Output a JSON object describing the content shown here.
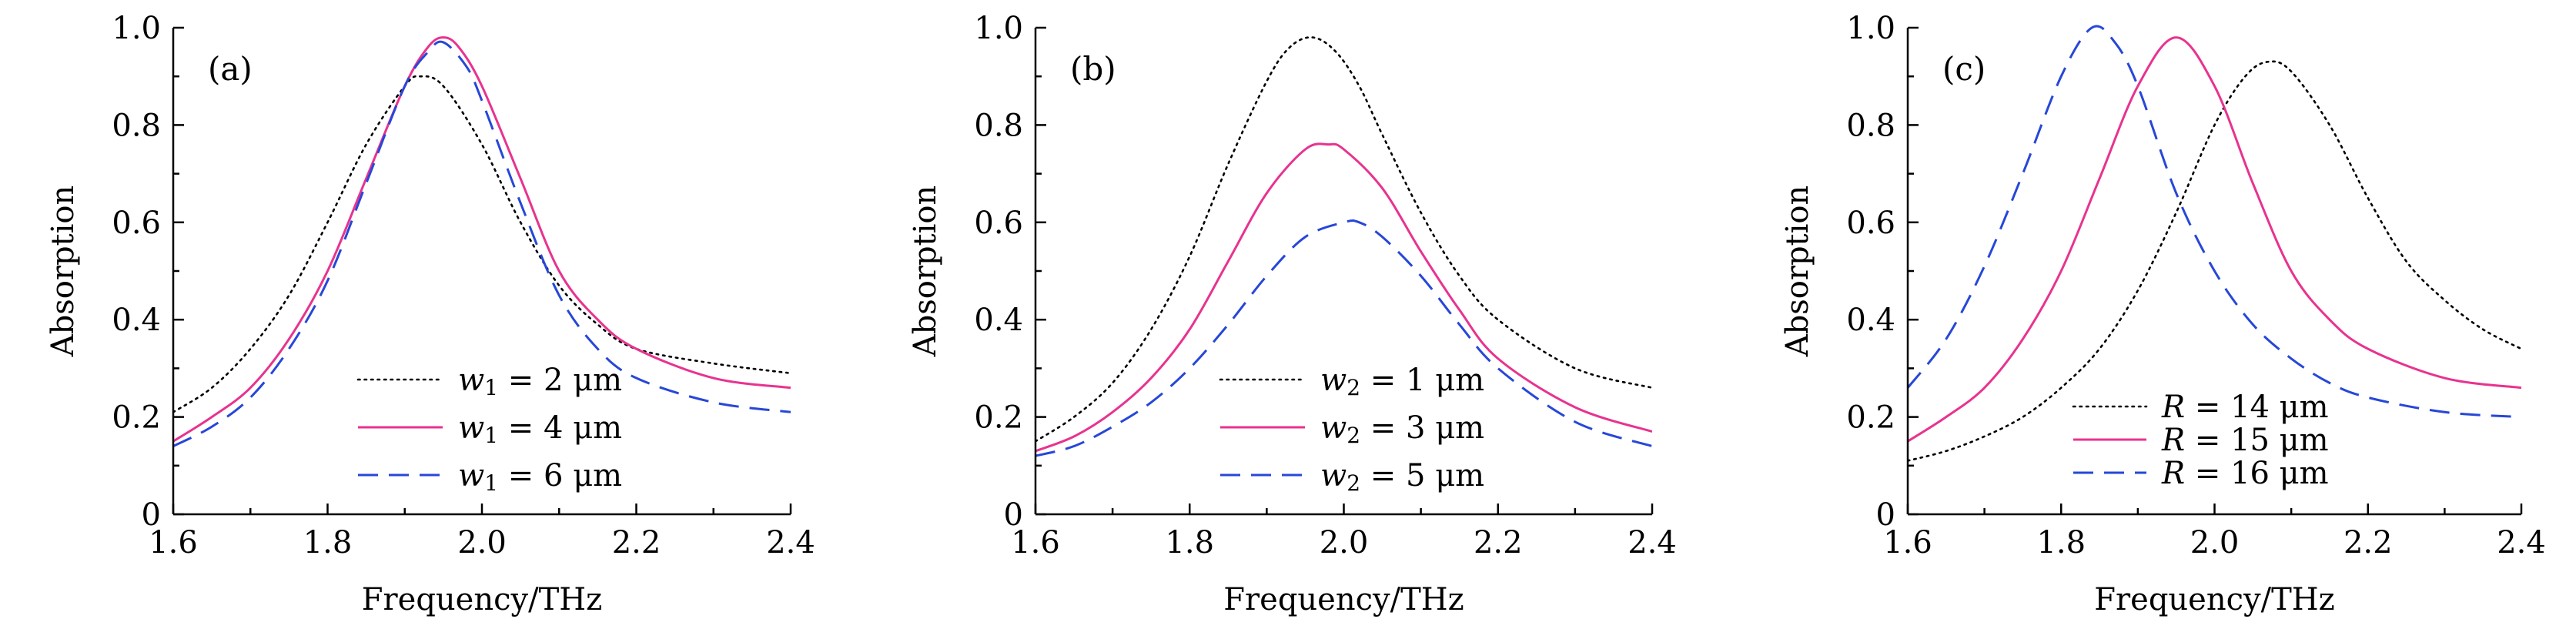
{
  "chart_data": [
    {
      "type": "line",
      "panel_label": "(a)",
      "xlabel": "Frequency/THz",
      "ylabel": "Absorption",
      "xlim": [
        1.6,
        2.4
      ],
      "ylim": [
        0,
        1.0
      ],
      "xticks": [
        "1.6",
        "1.8",
        "2.0",
        "2.2",
        "2.4"
      ],
      "yticks": [
        "0",
        "0.2",
        "0.4",
        "0.6",
        "0.8",
        "1.0"
      ],
      "grid": false,
      "legend_position": "lower-right",
      "series": [
        {
          "name": "w1 = 2 μm",
          "legend_var": "w",
          "legend_sub": "1",
          "legend_rest": " = 2 μm",
          "style": "dotted",
          "color": "#000000",
          "x": [
            1.6,
            1.65,
            1.7,
            1.75,
            1.8,
            1.85,
            1.9,
            1.92,
            1.95,
            2.0,
            2.05,
            2.1,
            2.15,
            2.2,
            2.3,
            2.4
          ],
          "y": [
            0.21,
            0.26,
            0.34,
            0.45,
            0.6,
            0.76,
            0.88,
            0.9,
            0.88,
            0.76,
            0.6,
            0.47,
            0.39,
            0.34,
            0.31,
            0.29
          ]
        },
        {
          "name": "w1 = 4 μm",
          "legend_var": "w",
          "legend_sub": "1",
          "legend_rest": " = 4 μm",
          "style": "solid",
          "color": "#e8338f",
          "x": [
            1.6,
            1.65,
            1.7,
            1.75,
            1.8,
            1.85,
            1.9,
            1.93,
            1.95,
            1.97,
            2.0,
            2.05,
            2.1,
            2.15,
            2.2,
            2.3,
            2.4
          ],
          "y": [
            0.15,
            0.2,
            0.26,
            0.36,
            0.5,
            0.69,
            0.88,
            0.96,
            0.98,
            0.96,
            0.88,
            0.69,
            0.5,
            0.4,
            0.34,
            0.28,
            0.26
          ]
        },
        {
          "name": "w1 = 6 μm",
          "legend_var": "w",
          "legend_sub": "1",
          "legend_rest": " = 6 μm",
          "style": "dashed",
          "color": "#2747d8",
          "x": [
            1.6,
            1.65,
            1.7,
            1.75,
            1.8,
            1.85,
            1.9,
            1.93,
            1.95,
            1.98,
            2.0,
            2.05,
            2.1,
            2.15,
            2.2,
            2.3,
            2.4
          ],
          "y": [
            0.14,
            0.18,
            0.24,
            0.34,
            0.48,
            0.68,
            0.88,
            0.95,
            0.97,
            0.92,
            0.85,
            0.64,
            0.45,
            0.34,
            0.28,
            0.23,
            0.21
          ]
        }
      ]
    },
    {
      "type": "line",
      "panel_label": "(b)",
      "xlabel": "Frequency/THz",
      "ylabel": "Absorption",
      "xlim": [
        1.6,
        2.4
      ],
      "ylim": [
        0,
        1.0
      ],
      "xticks": [
        "1.6",
        "1.8",
        "2.0",
        "2.2",
        "2.4"
      ],
      "yticks": [
        "0",
        "0.2",
        "0.4",
        "0.6",
        "0.8",
        "1.0"
      ],
      "grid": false,
      "legend_position": "lower-right",
      "series": [
        {
          "name": "w2 = 1 μm",
          "legend_var": "w",
          "legend_sub": "2",
          "legend_rest": " = 1 μm",
          "style": "dotted",
          "color": "#000000",
          "x": [
            1.6,
            1.65,
            1.7,
            1.75,
            1.8,
            1.85,
            1.9,
            1.93,
            1.96,
            1.99,
            2.02,
            2.05,
            2.1,
            2.15,
            2.2,
            2.3,
            2.4
          ],
          "y": [
            0.15,
            0.2,
            0.27,
            0.38,
            0.53,
            0.72,
            0.89,
            0.96,
            0.98,
            0.95,
            0.88,
            0.78,
            0.62,
            0.49,
            0.4,
            0.3,
            0.26
          ]
        },
        {
          "name": "w2 = 3 μm",
          "legend_var": "w",
          "legend_sub": "2",
          "legend_rest": " = 3 μm",
          "style": "solid",
          "color": "#e8338f",
          "x": [
            1.6,
            1.65,
            1.7,
            1.75,
            1.8,
            1.85,
            1.9,
            1.95,
            1.98,
            2.0,
            2.05,
            2.1,
            2.15,
            2.2,
            2.3,
            2.4
          ],
          "y": [
            0.13,
            0.16,
            0.21,
            0.28,
            0.38,
            0.52,
            0.66,
            0.75,
            0.76,
            0.75,
            0.67,
            0.54,
            0.42,
            0.32,
            0.22,
            0.17
          ]
        },
        {
          "name": "w2 = 5 μm",
          "legend_var": "w",
          "legend_sub": "2",
          "legend_rest": " = 5 μm",
          "style": "dashed",
          "color": "#2747d8",
          "x": [
            1.6,
            1.65,
            1.7,
            1.75,
            1.8,
            1.85,
            1.9,
            1.95,
            2.0,
            2.02,
            2.05,
            2.1,
            2.15,
            2.2,
            2.3,
            2.4
          ],
          "y": [
            0.12,
            0.14,
            0.18,
            0.23,
            0.3,
            0.39,
            0.49,
            0.57,
            0.6,
            0.6,
            0.57,
            0.49,
            0.39,
            0.3,
            0.19,
            0.14
          ]
        }
      ]
    },
    {
      "type": "line",
      "panel_label": "(c)",
      "xlabel": "Frequency/THz",
      "ylabel": "Absorption",
      "xlim": [
        1.6,
        2.4
      ],
      "ylim": [
        0,
        1.0
      ],
      "xticks": [
        "1.6",
        "1.8",
        "2.0",
        "2.2",
        "2.4"
      ],
      "yticks": [
        "0",
        "0.2",
        "0.4",
        "0.6",
        "0.8",
        "1.0"
      ],
      "grid": false,
      "legend_position": "lower-right",
      "series": [
        {
          "name": "R = 14 μm",
          "legend_var": "R",
          "legend_sub": "",
          "legend_rest": " = 14 μm",
          "style": "dotted",
          "color": "#000000",
          "x": [
            1.6,
            1.65,
            1.7,
            1.75,
            1.8,
            1.85,
            1.9,
            1.95,
            2.0,
            2.04,
            2.07,
            2.1,
            2.15,
            2.2,
            2.25,
            2.3,
            2.35,
            2.4
          ],
          "y": [
            0.11,
            0.13,
            0.16,
            0.2,
            0.26,
            0.34,
            0.46,
            0.62,
            0.8,
            0.9,
            0.93,
            0.91,
            0.8,
            0.65,
            0.52,
            0.44,
            0.38,
            0.34
          ]
        },
        {
          "name": "R = 15 μm",
          "legend_var": "R",
          "legend_sub": "",
          "legend_rest": " = 15 μm",
          "style": "solid",
          "color": "#e8338f",
          "x": [
            1.6,
            1.65,
            1.7,
            1.75,
            1.8,
            1.85,
            1.9,
            1.95,
            2.0,
            2.05,
            2.1,
            2.15,
            2.2,
            2.3,
            2.4
          ],
          "y": [
            0.15,
            0.2,
            0.26,
            0.36,
            0.5,
            0.69,
            0.88,
            0.98,
            0.88,
            0.68,
            0.5,
            0.4,
            0.34,
            0.28,
            0.26
          ]
        },
        {
          "name": "R = 16 μm",
          "legend_var": "R",
          "legend_sub": "",
          "legend_rest": " = 16 μm",
          "style": "dashed",
          "color": "#2747d8",
          "x": [
            1.6,
            1.65,
            1.7,
            1.75,
            1.8,
            1.84,
            1.87,
            1.9,
            1.95,
            2.0,
            2.05,
            2.1,
            2.15,
            2.2,
            2.3,
            2.4
          ],
          "y": [
            0.26,
            0.36,
            0.51,
            0.7,
            0.9,
            1.0,
            0.97,
            0.88,
            0.66,
            0.5,
            0.39,
            0.32,
            0.27,
            0.24,
            0.21,
            0.2
          ]
        }
      ]
    }
  ]
}
